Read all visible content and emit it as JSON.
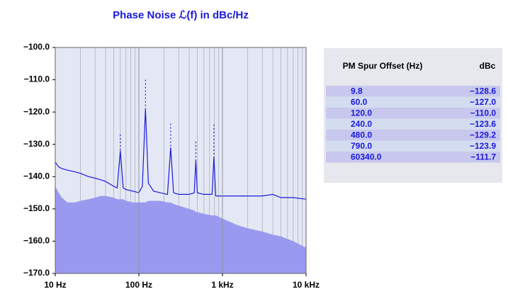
{
  "chart_data": {
    "type": "line",
    "title": "Phase Noise ℒ(f) in dBc/Hz",
    "x": [
      10,
      11,
      12,
      14,
      17,
      20,
      25,
      30,
      35,
      40,
      50,
      55,
      60,
      65,
      70,
      85,
      100,
      110,
      120,
      130,
      150,
      180,
      220,
      240,
      260,
      300,
      400,
      460,
      480,
      500,
      600,
      750,
      790,
      830,
      1000,
      1500,
      2000,
      3000,
      4000,
      5000,
      7000,
      10000
    ],
    "series": [
      {
        "color": "#9999f0",
        "fill": true,
        "values": [
          -143,
          -145,
          -146.5,
          -148,
          -148,
          -147.5,
          -147,
          -146.5,
          -146,
          -146,
          -146.5,
          -147,
          -147,
          -147,
          -147.5,
          -148,
          -148,
          -148,
          -148,
          -147.5,
          -147.5,
          -147.5,
          -148,
          -148,
          -148.5,
          -149,
          -150,
          -150.5,
          -151,
          -151,
          -151.5,
          -152,
          -152,
          -152,
          -153,
          -155,
          -156,
          -157,
          -158,
          -158.5,
          -160,
          -162
        ]
      },
      {
        "color": "#1a1adb",
        "fill": false,
        "values": [
          -135.5,
          -137,
          -137.5,
          -138,
          -138.5,
          -139,
          -140,
          -140.5,
          -141,
          -141.5,
          -143,
          -143.5,
          -132,
          -143.5,
          -144,
          -144.5,
          -145,
          -143,
          -119,
          -142,
          -144.5,
          -145,
          -145.5,
          -131,
          -145,
          -145.5,
          -145.5,
          -145,
          -135,
          -145,
          -145.5,
          -145.5,
          -134,
          -146,
          -146,
          -146,
          -146,
          -146,
          -145.5,
          -146.5,
          -146.5,
          -147
        ]
      }
    ],
    "xscale": "log",
    "xlim": [
      10,
      10000
    ],
    "xticks": [
      {
        "value": 10,
        "label": "10 Hz"
      },
      {
        "value": 100,
        "label": "100 Hz"
      },
      {
        "value": 1000,
        "label": "1 kHz"
      },
      {
        "value": 10000,
        "label": "10 kHz"
      }
    ],
    "ylim": [
      -170,
      -100
    ],
    "yticks": [
      {
        "value": -100,
        "label": "−100.0"
      },
      {
        "value": -110,
        "label": "−110.0"
      },
      {
        "value": -120,
        "label": "−120.0"
      },
      {
        "value": -130,
        "label": "−130.0"
      },
      {
        "value": -140,
        "label": "−140.0"
      },
      {
        "value": -150,
        "label": "−150.0"
      },
      {
        "value": -160,
        "label": "−160.0"
      },
      {
        "value": -170,
        "label": "−170.0"
      }
    ],
    "grid": true,
    "spurs": {
      "color": "#1a1adb",
      "x": [
        9.8,
        60,
        120,
        240,
        480,
        790,
        60340
      ],
      "x_labels": [
        "9.8",
        "60.0",
        "120.0",
        "240.0",
        "480.0",
        "790.0",
        "60340.0"
      ],
      "values": [
        -128.6,
        -127.0,
        -110.0,
        -123.6,
        -129.2,
        -123.9,
        -111.7
      ],
      "value_labels": [
        "−128.6",
        "−127.0",
        "−110.0",
        "−123.6",
        "−129.2",
        "−123.9",
        "−111.7"
      ]
    }
  },
  "table": {
    "headers": [
      "PM Spur Offset (Hz)",
      "dBc"
    ]
  }
}
